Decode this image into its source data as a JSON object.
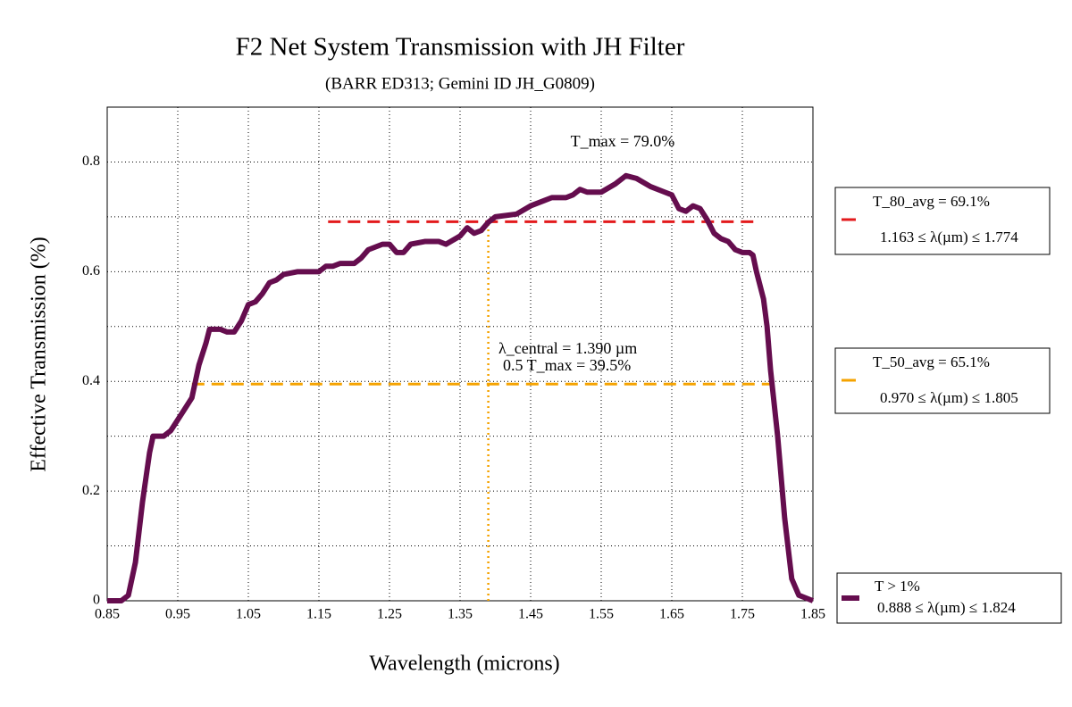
{
  "chart_data": {
    "type": "line",
    "title": "F2 Net System Transmission with JH Filter",
    "subtitle": "(BARR ED313; Gemini ID JH_G0809)",
    "x_label": "Wavelength (microns)",
    "y_label": "Effective Transmission (%)",
    "annotations": [
      "T_max = 79.0%",
      "λ_central = 1.390 µm",
      "0.5 T_max = 39.5%"
    ],
    "x": [
      0.85,
      0.87,
      0.88,
      0.89,
      0.9,
      0.91,
      0.915,
      0.93,
      0.94,
      0.95,
      0.96,
      0.97,
      0.98,
      0.99,
      0.995,
      1.01,
      1.02,
      1.03,
      1.04,
      1.05,
      1.06,
      1.07,
      1.08,
      1.09,
      1.1,
      1.12,
      1.15,
      1.16,
      1.17,
      1.18,
      1.2,
      1.21,
      1.22,
      1.24,
      1.25,
      1.26,
      1.27,
      1.28,
      1.3,
      1.32,
      1.33,
      1.35,
      1.36,
      1.37,
      1.38,
      1.39,
      1.4,
      1.43,
      1.45,
      1.47,
      1.48,
      1.5,
      1.51,
      1.52,
      1.53,
      1.55,
      1.57,
      1.585,
      1.6,
      1.62,
      1.64,
      1.65,
      1.66,
      1.67,
      1.68,
      1.69,
      1.7,
      1.71,
      1.72,
      1.73,
      1.74,
      1.75,
      1.76,
      1.765,
      1.77,
      1.78,
      1.785,
      1.79,
      1.8,
      1.81,
      1.82,
      1.83,
      1.85
    ],
    "series": [
      {
        "name": "T > 1%",
        "range_label": "0.888 ≤  λ(µm)  ≤ 1.824",
        "color": "#650d4e",
        "values": [
          0.0,
          0.0,
          0.01,
          0.07,
          0.18,
          0.27,
          0.3,
          0.3,
          0.31,
          0.33,
          0.35,
          0.37,
          0.43,
          0.47,
          0.495,
          0.495,
          0.49,
          0.49,
          0.51,
          0.54,
          0.545,
          0.56,
          0.58,
          0.585,
          0.595,
          0.6,
          0.6,
          0.61,
          0.61,
          0.615,
          0.615,
          0.625,
          0.64,
          0.65,
          0.65,
          0.635,
          0.635,
          0.65,
          0.655,
          0.655,
          0.65,
          0.665,
          0.68,
          0.67,
          0.675,
          0.69,
          0.7,
          0.705,
          0.72,
          0.73,
          0.735,
          0.735,
          0.74,
          0.75,
          0.745,
          0.745,
          0.76,
          0.775,
          0.77,
          0.755,
          0.745,
          0.74,
          0.715,
          0.71,
          0.72,
          0.715,
          0.695,
          0.67,
          0.66,
          0.655,
          0.64,
          0.635,
          0.635,
          0.63,
          0.6,
          0.55,
          0.5,
          0.42,
          0.3,
          0.15,
          0.04,
          0.01,
          0.0
        ]
      }
    ],
    "reference_lines": [
      {
        "label": "T_80_avg = 69.1%",
        "range_label": "1.163 ≤ λ(µm) ≤ 1.774",
        "y": 0.691,
        "x_start": 1.163,
        "x_end": 1.774,
        "color": "#e31a1c"
      },
      {
        "label": "T_50_avg = 65.1%",
        "range_label": "0.970 ≤ λ(µm) ≤ 1.805",
        "y": 0.395,
        "x_start": 0.97,
        "x_end": 1.805,
        "color": "#f5a300"
      }
    ],
    "central_line": {
      "x": 1.39,
      "color": "#f5a300"
    },
    "xlim": [
      0.85,
      1.85
    ],
    "ylim": [
      0,
      0.9
    ],
    "xticks": [
      0.85,
      0.95,
      1.05,
      1.15,
      1.25,
      1.35,
      1.45,
      1.55,
      1.65,
      1.75,
      1.85
    ],
    "yticks": [
      0,
      0.2,
      0.4,
      0.6,
      0.8
    ],
    "y_minor_ticks": [
      0.1,
      0.3,
      0.5,
      0.7
    ],
    "grid": true
  }
}
